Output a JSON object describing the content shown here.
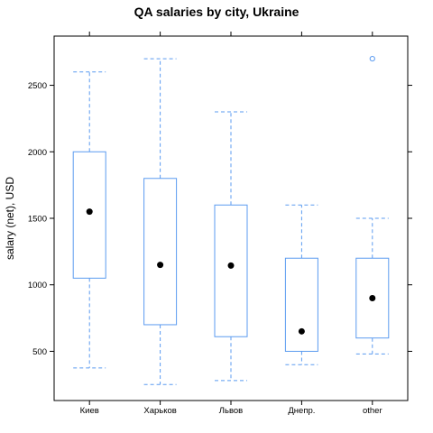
{
  "chart_data": {
    "type": "boxplot",
    "title": "QA salaries by city, Ukraine",
    "xlabel": "",
    "ylabel": "salary (net), USD",
    "ylim": [
      130,
      2870
    ],
    "yticks": [
      500,
      1000,
      1500,
      2000,
      2500
    ],
    "grid": false,
    "box_color": "#5b9bf0",
    "median_color": "#000000",
    "categories": [
      "Киев",
      "Харьков",
      "Львов",
      "Днепр.",
      "other"
    ],
    "boxes": [
      {
        "category": "Киев",
        "whisker_low": 375,
        "q1": 1050,
        "median": 1550,
        "q3": 2000,
        "whisker_high": 2600,
        "outliers": []
      },
      {
        "category": "Харьков",
        "whisker_low": 250,
        "q1": 700,
        "median": 1150,
        "q3": 1800,
        "whisker_high": 2700,
        "outliers": []
      },
      {
        "category": "Львов",
        "whisker_low": 280,
        "q1": 610,
        "median": 1145,
        "q3": 1600,
        "whisker_high": 2300,
        "outliers": []
      },
      {
        "category": "Днепр.",
        "whisker_low": 400,
        "q1": 500,
        "median": 650,
        "q3": 1200,
        "whisker_high": 1600,
        "outliers": []
      },
      {
        "category": "other",
        "whisker_low": 480,
        "q1": 600,
        "median": 900,
        "q3": 1200,
        "whisker_high": 1500,
        "outliers": [
          2700
        ]
      }
    ]
  }
}
